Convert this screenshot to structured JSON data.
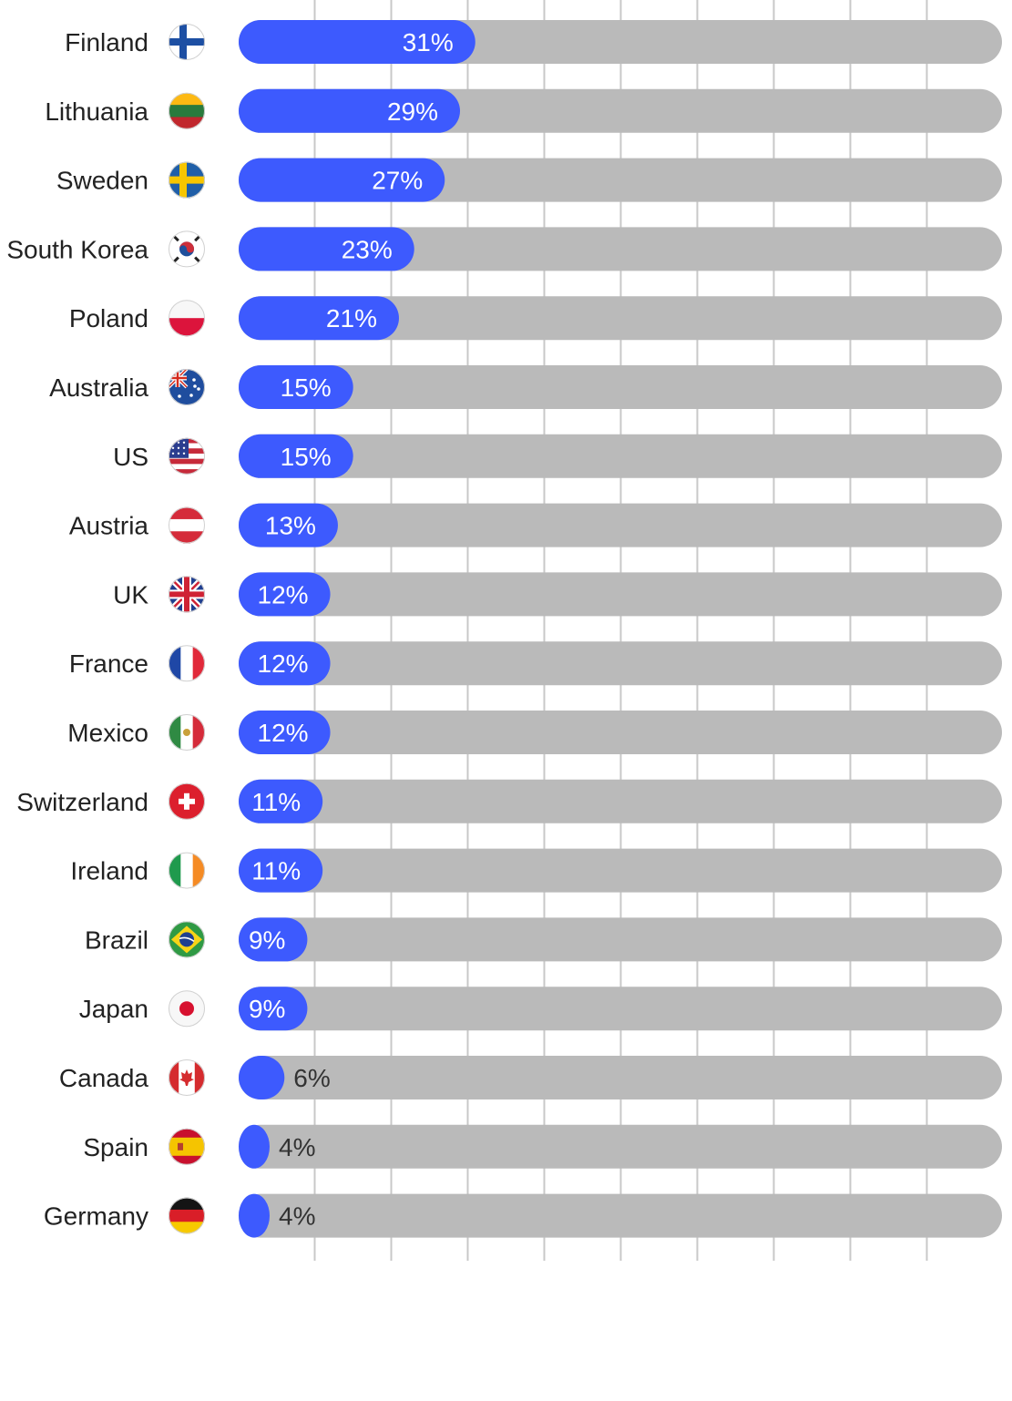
{
  "chart_data": {
    "type": "bar",
    "orientation": "horizontal",
    "categories": [
      "Finland",
      "Lithuania",
      "Sweden",
      "South Korea",
      "Poland",
      "Australia",
      "US",
      "Austria",
      "UK",
      "France",
      "Mexico",
      "Switzerland",
      "Ireland",
      "Brazil",
      "Japan",
      "Canada",
      "Spain",
      "Germany"
    ],
    "values": [
      31,
      29,
      27,
      23,
      21,
      15,
      15,
      13,
      12,
      12,
      12,
      11,
      11,
      9,
      9,
      6,
      4,
      4
    ],
    "value_labels": [
      "31%",
      "29%",
      "27%",
      "23%",
      "21%",
      "15%",
      "15%",
      "13%",
      "12%",
      "12%",
      "12%",
      "11%",
      "11%",
      "9%",
      "9%",
      "6%",
      "4%",
      "4%"
    ],
    "flag_icons": [
      "finland-flag-icon",
      "lithuania-flag-icon",
      "sweden-flag-icon",
      "south-korea-flag-icon",
      "poland-flag-icon",
      "australia-flag-icon",
      "us-flag-icon",
      "austria-flag-icon",
      "uk-flag-icon",
      "france-flag-icon",
      "mexico-flag-icon",
      "switzerland-flag-icon",
      "ireland-flag-icon",
      "brazil-flag-icon",
      "japan-flag-icon",
      "canada-flag-icon",
      "spain-flag-icon",
      "germany-flag-icon"
    ],
    "xlim": [
      0,
      100
    ],
    "grid": true,
    "title": "",
    "xlabel": "",
    "ylabel": "",
    "colors": {
      "bar": "#3d5afe",
      "track": "#bababa",
      "grid": "#c8c8c8",
      "label_inside": "#ffffff",
      "label_outside": "#333333"
    }
  }
}
